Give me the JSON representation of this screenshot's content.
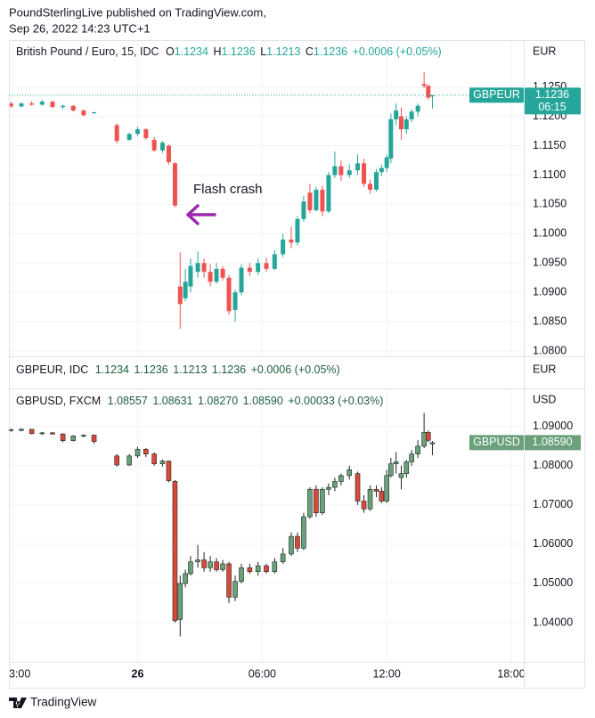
{
  "header": {
    "line1": "PoundSterlingLive published on TradingView.com,",
    "line2": "Sep 26, 2022 14:23 UTC+1"
  },
  "chart_data": [
    {
      "type": "candlestick",
      "symbol": "British Pound / Euro, 15, IDC",
      "currency": "EUR",
      "ohlc_letters": [
        "O",
        "H",
        "L",
        "C"
      ],
      "change": "+0.0006 (+0.05%)",
      "price_tag": {
        "name": "GBPEUR",
        "countdown": "06:15"
      },
      "annotation": "Flash crash",
      "up_color": "#26a69a",
      "down_color": "#ef5350",
      "grid": true,
      "x": [
        -6.1,
        -5.6,
        -5.1,
        -4.6,
        -4.1,
        -3.6,
        -3.1,
        -2.6,
        -2.1,
        -1.0,
        -0.4,
        0.0,
        0.4,
        0.8,
        1.2,
        1.5,
        1.8,
        2.05,
        2.3,
        2.55,
        2.9,
        3.2,
        3.5,
        3.8,
        4.1,
        4.4,
        4.7,
        5.0,
        5.4,
        5.8,
        6.2,
        6.6,
        7.0,
        7.4,
        7.7,
        8.0,
        8.3,
        8.6,
        8.9,
        9.2,
        9.5,
        9.8,
        10.2,
        10.6,
        10.9,
        11.2,
        11.5,
        11.75,
        12.0,
        12.2,
        12.45,
        12.7,
        12.95,
        13.2,
        13.5,
        13.8,
        14.0,
        14.2
      ],
      "open": [
        1.1222,
        1.1217,
        1.1222,
        1.122,
        1.1225,
        1.1216,
        1.1218,
        1.121,
        1.1206,
        1.1185,
        1.116,
        1.117,
        1.1178,
        1.116,
        1.1142,
        1.115,
        1.112,
        1.091,
        1.089,
        1.091,
        1.0935,
        1.095,
        1.0935,
        1.0918,
        1.094,
        1.0925,
        1.087,
        1.09,
        1.0942,
        1.0935,
        1.095,
        1.094,
        1.0965,
        1.099,
        1.0985,
        1.1025,
        1.107,
        1.104,
        1.1075,
        1.1038,
        1.11,
        1.1115,
        1.11,
        1.1108,
        1.112,
        1.1085,
        1.1075,
        1.1105,
        1.1112,
        1.1128,
        1.1195,
        1.12,
        1.1178,
        1.1195,
        1.1208,
        1.1255,
        1.1252,
        1.1234
      ],
      "high": [
        1.1225,
        1.1224,
        1.1226,
        1.1228,
        1.1227,
        1.122,
        1.1219,
        1.1212,
        1.1208,
        1.1188,
        1.1172,
        1.1182,
        1.118,
        1.1165,
        1.1158,
        1.1152,
        1.1122,
        1.0968,
        1.094,
        1.0958,
        1.097,
        1.0958,
        1.0948,
        1.095,
        1.0945,
        1.093,
        1.0905,
        1.0948,
        1.095,
        1.0958,
        1.096,
        1.0972,
        1.1,
        1.1012,
        1.103,
        1.1065,
        1.1085,
        1.108,
        1.1082,
        1.1105,
        1.114,
        1.1125,
        1.1118,
        1.1135,
        1.1128,
        1.1092,
        1.111,
        1.1118,
        1.1135,
        1.1205,
        1.1222,
        1.1215,
        1.12,
        1.1212,
        1.1222,
        1.1275,
        1.1254,
        1.1236
      ],
      "low": [
        1.1215,
        1.1215,
        1.1218,
        1.1218,
        1.1214,
        1.1212,
        1.1208,
        1.12,
        1.1204,
        1.1154,
        1.1158,
        1.1166,
        1.116,
        1.114,
        1.1138,
        1.1118,
        1.1045,
        1.0838,
        1.0885,
        1.09,
        1.0925,
        1.0925,
        1.091,
        1.0915,
        1.092,
        1.0862,
        1.085,
        1.0895,
        1.0928,
        1.093,
        1.0935,
        1.0938,
        1.096,
        1.0975,
        1.098,
        1.102,
        1.1035,
        1.1038,
        1.103,
        1.1035,
        1.1095,
        1.109,
        1.1095,
        1.11,
        1.108,
        1.1068,
        1.1072,
        1.1098,
        1.1105,
        1.112,
        1.1185,
        1.116,
        1.117,
        1.119,
        1.12,
        1.1248,
        1.1228,
        1.1213
      ],
      "close": [
        1.1217,
        1.1222,
        1.122,
        1.1225,
        1.1216,
        1.1218,
        1.121,
        1.1202,
        1.1207,
        1.1158,
        1.117,
        1.1178,
        1.1163,
        1.1142,
        1.1155,
        1.1122,
        1.1048,
        1.088,
        1.0918,
        1.0945,
        1.095,
        1.0935,
        1.0918,
        1.094,
        1.0925,
        1.0868,
        1.09,
        1.0942,
        1.0935,
        1.095,
        1.094,
        1.0965,
        1.099,
        1.0985,
        1.1025,
        1.1055,
        1.104,
        1.1075,
        1.1038,
        1.11,
        1.1115,
        1.11,
        1.1108,
        1.112,
        1.1085,
        1.1075,
        1.1105,
        1.1112,
        1.113,
        1.1195,
        1.121,
        1.1178,
        1.1195,
        1.1208,
        1.1218,
        1.1252,
        1.1232,
        1.1236
      ],
      "xlim": [
        -6.2,
        18.6
      ],
      "ylim": [
        1.0791,
        1.133
      ],
      "yticks": [
        {
          "value": 1.08,
          "label": "1.0800"
        },
        {
          "value": 1.085,
          "label": "1.0850"
        },
        {
          "value": 1.09,
          "label": "1.0900"
        },
        {
          "value": 1.095,
          "label": "1.0950"
        },
        {
          "value": 1.1,
          "label": "1.1000"
        },
        {
          "value": 1.105,
          "label": "1.1050"
        },
        {
          "value": 1.11,
          "label": "1.1100"
        },
        {
          "value": 1.115,
          "label": "1.1150"
        },
        {
          "value": 1.12,
          "label": "1.1200"
        },
        {
          "value": 1.125,
          "label": "1.1250"
        }
      ]
    },
    {
      "type": "candlestick",
      "symbol": "GBPUSD, FXCM",
      "currency": "USD",
      "last_labels": [
        "1.08557",
        "1.08631",
        "1.08270",
        "1.08590"
      ],
      "change": "+0.00033 (+0.03%)",
      "price_tag": {
        "name": "GBPUSD"
      },
      "up_color": "#6aa07a",
      "down_color": "#d9483b",
      "grid": true,
      "x": [
        -6.1,
        -5.6,
        -5.1,
        -4.6,
        -4.1,
        -3.6,
        -3.1,
        -2.6,
        -2.1,
        -1.0,
        -0.4,
        0.0,
        0.4,
        0.8,
        1.2,
        1.5,
        1.8,
        2.05,
        2.3,
        2.55,
        2.9,
        3.2,
        3.5,
        3.8,
        4.1,
        4.4,
        4.7,
        5.0,
        5.4,
        5.8,
        6.2,
        6.6,
        7.0,
        7.4,
        7.7,
        8.0,
        8.3,
        8.6,
        8.9,
        9.2,
        9.5,
        9.8,
        10.2,
        10.6,
        10.9,
        11.2,
        11.5,
        11.75,
        12.0,
        12.2,
        12.45,
        12.7,
        12.95,
        13.2,
        13.5,
        13.8,
        14.0,
        14.2
      ],
      "open": [
        1.0892,
        1.089,
        1.0893,
        1.0882,
        1.0884,
        1.0881,
        1.0864,
        1.0876,
        1.0878,
        1.0825,
        1.0802,
        1.0825,
        1.0842,
        1.083,
        1.0805,
        1.0812,
        1.076,
        1.0408,
        1.05,
        1.0525,
        1.0555,
        1.056,
        1.054,
        1.0555,
        1.0535,
        1.055,
        1.0465,
        1.0505,
        1.054,
        1.053,
        1.0545,
        1.053,
        1.0555,
        1.0575,
        1.062,
        1.059,
        1.067,
        1.074,
        1.068,
        1.074,
        1.0745,
        1.076,
        1.0775,
        1.078,
        1.071,
        1.069,
        1.074,
        1.0735,
        1.071,
        1.0775,
        1.0805,
        1.077,
        1.078,
        1.081,
        1.083,
        1.085,
        1.0885,
        1.08557
      ],
      "high": [
        1.0895,
        1.0896,
        1.0894,
        1.0886,
        1.0886,
        1.0883,
        1.0878,
        1.088,
        1.088,
        1.083,
        1.083,
        1.0848,
        1.0845,
        1.0834,
        1.0816,
        1.0813,
        1.0764,
        1.052,
        1.0535,
        1.057,
        1.0598,
        1.058,
        1.057,
        1.0565,
        1.056,
        1.0555,
        1.052,
        1.055,
        1.055,
        1.0555,
        1.055,
        1.0565,
        1.059,
        1.063,
        1.063,
        1.068,
        1.0745,
        1.075,
        1.0745,
        1.0755,
        1.077,
        1.078,
        1.08,
        1.0785,
        1.0725,
        1.075,
        1.075,
        1.0745,
        1.079,
        1.082,
        1.0835,
        1.08,
        1.0815,
        1.084,
        1.0865,
        1.0935,
        1.089,
        1.08631
      ],
      "low": [
        1.0887,
        1.0888,
        1.088,
        1.0878,
        1.0879,
        1.086,
        1.0862,
        1.0872,
        1.0856,
        1.0798,
        1.08,
        1.082,
        1.0822,
        1.08,
        1.0798,
        1.0758,
        1.04,
        1.0365,
        1.049,
        1.052,
        1.054,
        1.053,
        1.053,
        1.053,
        1.053,
        1.045,
        1.0455,
        1.05,
        1.0525,
        1.052,
        1.0525,
        1.0525,
        1.055,
        1.057,
        1.058,
        1.0585,
        1.0665,
        1.067,
        1.0675,
        1.0725,
        1.0735,
        1.075,
        1.0765,
        1.07,
        1.068,
        1.0685,
        1.072,
        1.0705,
        1.0705,
        1.077,
        1.078,
        1.074,
        1.077,
        1.08,
        1.082,
        1.0845,
        1.086,
        1.0827
      ],
      "close": [
        1.089,
        1.0893,
        1.0882,
        1.0884,
        1.0881,
        1.0864,
        1.0876,
        1.0878,
        1.0862,
        1.0802,
        1.0825,
        1.0842,
        1.083,
        1.0805,
        1.0812,
        1.0762,
        1.0405,
        1.05,
        1.0525,
        1.0555,
        1.056,
        1.054,
        1.0555,
        1.0535,
        1.055,
        1.0465,
        1.0505,
        1.054,
        1.053,
        1.0545,
        1.053,
        1.0555,
        1.0575,
        1.062,
        1.059,
        1.067,
        1.074,
        1.068,
        1.074,
        1.0745,
        1.076,
        1.0775,
        1.079,
        1.071,
        1.069,
        1.074,
        1.0735,
        1.071,
        1.0775,
        1.0805,
        1.081,
        1.078,
        1.081,
        1.083,
        1.085,
        1.0885,
        1.0865,
        1.0859
      ],
      "xlim": [
        -6.2,
        18.6
      ],
      "ylim": [
        1.03,
        1.0995
      ],
      "yticks": [
        {
          "value": 1.04,
          "label": "1.04000"
        },
        {
          "value": 1.05,
          "label": "1.05000"
        },
        {
          "value": 1.06,
          "label": "1.06000"
        },
        {
          "value": 1.07,
          "label": "1.07000"
        },
        {
          "value": 1.08,
          "label": "1.08000"
        },
        {
          "value": 1.09,
          "label": "1.09000"
        }
      ],
      "xticks": [
        {
          "value": -6,
          "label": "3:00"
        },
        {
          "value": 0,
          "label": "26"
        },
        {
          "value": 6,
          "label": "06:00"
        },
        {
          "value": 12,
          "label": "12:00"
        },
        {
          "value": 18,
          "label": "18:00"
        }
      ]
    }
  ],
  "subpane": {
    "title": "GBPEUR, IDC"
  },
  "footer": {
    "brand": "TradingView"
  }
}
